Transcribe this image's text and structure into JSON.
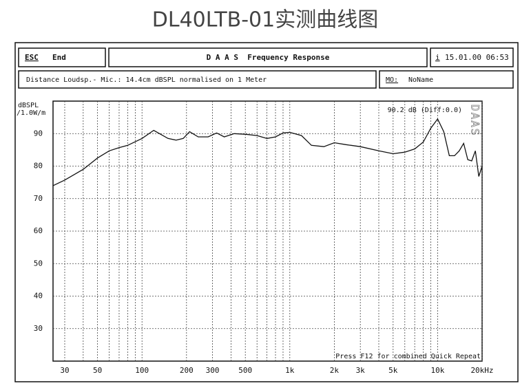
{
  "panel": {
    "esc": "ESC",
    "end": "End",
    "heading": "D A A S  Frequency Response",
    "info_icon": "i",
    "datetime": "15.01.00 06:53",
    "distance": "Distance Loudsp.- Mic.: 14.4cm dBSPL normalised on 1 Meter",
    "mo": "MO:",
    "mo_name": "NoName"
  },
  "chart_data": {
    "type": "line",
    "title": "DL40LTB-01实测曲线图",
    "y_label_1": "dBSPL",
    "y_label_2": "/1.0W/m",
    "readout": "90.2 dB (Diff:0.0)",
    "watermark": "DAAS",
    "footer_note": "Press F12 for combined Quick Repeat",
    "log_x": true,
    "grid": true,
    "xlim": [
      25,
      20000
    ],
    "ylim": [
      20,
      100
    ],
    "xticks": [
      30,
      50,
      100,
      200,
      300,
      500,
      {
        "value": 1000,
        "label": "1k"
      },
      {
        "value": 2000,
        "label": "2k"
      },
      {
        "value": 3000,
        "label": "3k"
      },
      {
        "value": 5000,
        "label": "5k"
      },
      {
        "value": 10000,
        "label": "10k"
      },
      {
        "value": 20000,
        "label": "20kHz"
      }
    ],
    "xminor": [
      40,
      60,
      70,
      80,
      90,
      400,
      600,
      700,
      800,
      900,
      4000,
      6000,
      7000,
      8000,
      9000
    ],
    "yticks": [
      30,
      40,
      50,
      60,
      70,
      80,
      90
    ],
    "series": [
      {
        "name": "Frequency Response",
        "color": "#111111",
        "x": [
          25,
          30,
          40,
          50,
          60,
          70,
          80,
          100,
          120,
          150,
          170,
          190,
          210,
          240,
          280,
          320,
          360,
          420,
          500,
          600,
          700,
          800,
          900,
          1000,
          1200,
          1400,
          1700,
          2000,
          2400,
          3000,
          4000,
          5000,
          6000,
          7000,
          8000,
          9000,
          10000,
          11000,
          12000,
          13000,
          14000,
          15000,
          16000,
          17000,
          18000,
          19000,
          20000
        ],
        "values": [
          74,
          75.7,
          79,
          82.5,
          84.7,
          85.7,
          86.4,
          88.5,
          91,
          88.5,
          88,
          88.5,
          90.6,
          89,
          89,
          90.2,
          89,
          90,
          89.8,
          89.4,
          88.5,
          89,
          90.2,
          90.4,
          89.4,
          86.4,
          86,
          87.2,
          86.6,
          86,
          84.7,
          83.8,
          84.3,
          85.3,
          87.4,
          91.7,
          94.5,
          90.6,
          83.2,
          83.2,
          84.7,
          87,
          82,
          81.6,
          84.7,
          76.8,
          80
        ]
      }
    ]
  }
}
